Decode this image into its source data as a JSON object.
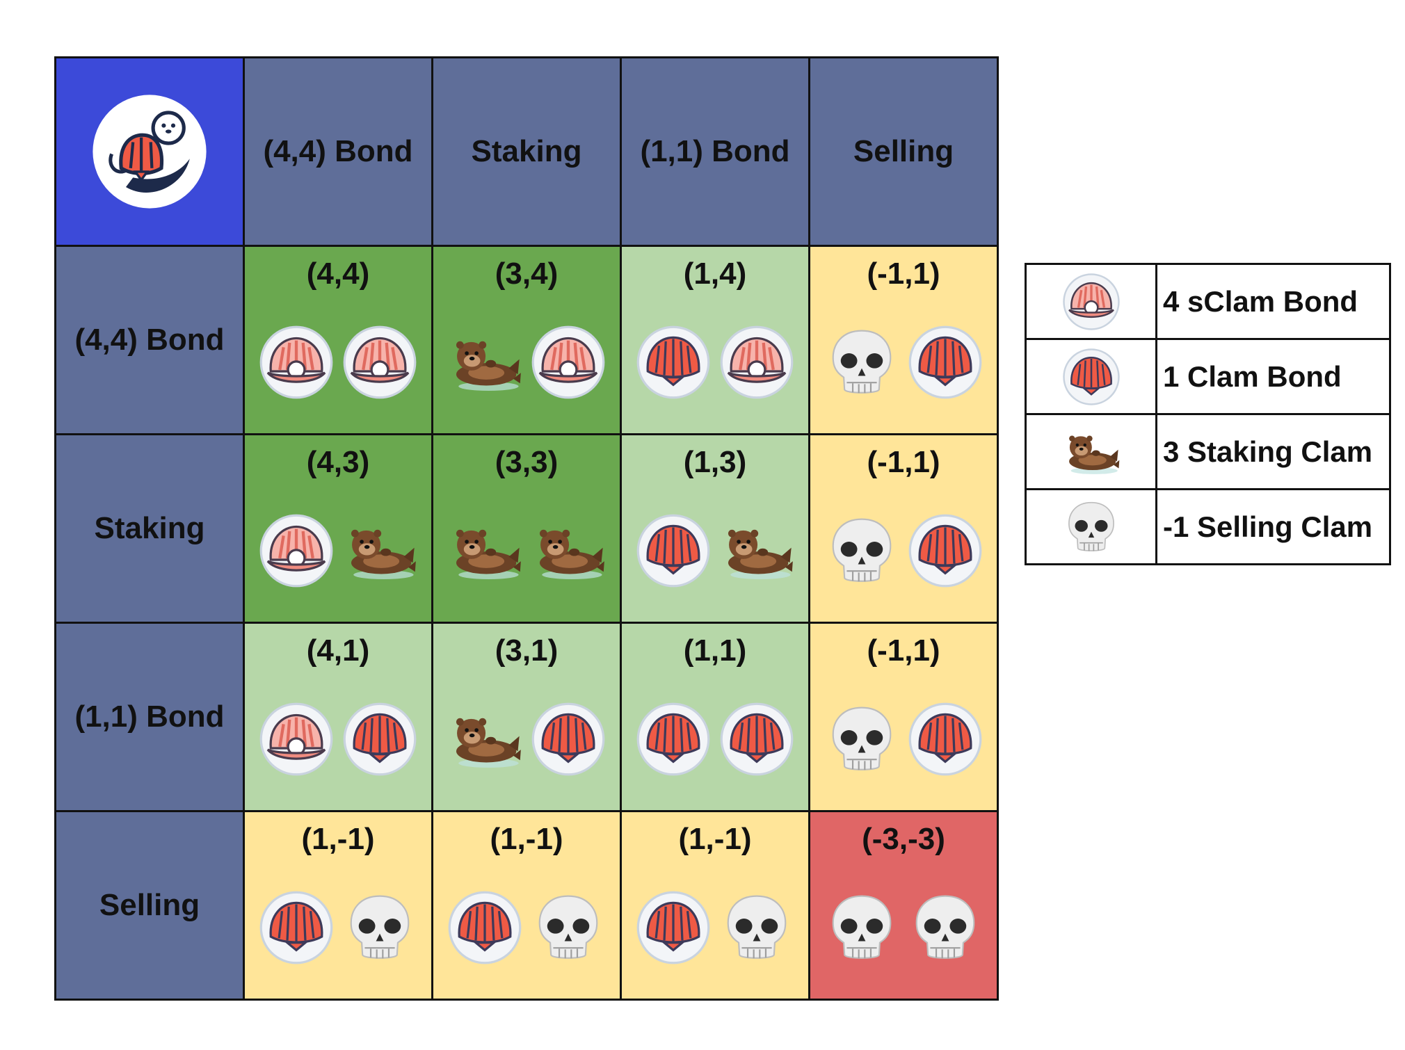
{
  "logo": {
    "icon": "otter-holding-clam-logo"
  },
  "column_headers": [
    "(4,4) Bond",
    "Staking",
    "(1,1) Bond",
    "Selling"
  ],
  "rows": [
    {
      "label": "(4,4) Bond",
      "cells": [
        {
          "payoff": "(4,4)",
          "color": "#6aa84f",
          "icons": [
            "sclam-bond-icon",
            "sclam-bond-icon"
          ]
        },
        {
          "payoff": "(3,4)",
          "color": "#6aa84f",
          "icons": [
            "otter-icon",
            "sclam-bond-icon"
          ]
        },
        {
          "payoff": "(1,4)",
          "color": "#b6d7a8",
          "icons": [
            "clam-bond-icon",
            "sclam-bond-icon"
          ]
        },
        {
          "payoff": "(-1,1)",
          "color": "#ffe599",
          "icons": [
            "skull-icon",
            "clam-bond-icon"
          ]
        }
      ]
    },
    {
      "label": "Staking",
      "cells": [
        {
          "payoff": "(4,3)",
          "color": "#6aa84f",
          "icons": [
            "sclam-bond-icon",
            "otter-icon"
          ]
        },
        {
          "payoff": "(3,3)",
          "color": "#6aa84f",
          "icons": [
            "otter-icon",
            "otter-icon"
          ]
        },
        {
          "payoff": "(1,3)",
          "color": "#b6d7a8",
          "icons": [
            "clam-bond-icon",
            "otter-icon"
          ]
        },
        {
          "payoff": "(-1,1)",
          "color": "#ffe599",
          "icons": [
            "skull-icon",
            "clam-bond-icon"
          ]
        }
      ]
    },
    {
      "label": "(1,1) Bond",
      "cells": [
        {
          "payoff": "(4,1)",
          "color": "#b6d7a8",
          "icons": [
            "sclam-bond-icon",
            "clam-bond-icon"
          ]
        },
        {
          "payoff": "(3,1)",
          "color": "#b6d7a8",
          "icons": [
            "otter-icon",
            "clam-bond-icon"
          ]
        },
        {
          "payoff": "(1,1)",
          "color": "#b6d7a8",
          "icons": [
            "clam-bond-icon",
            "clam-bond-icon"
          ]
        },
        {
          "payoff": "(-1,1)",
          "color": "#ffe599",
          "icons": [
            "skull-icon",
            "clam-bond-icon"
          ]
        }
      ]
    },
    {
      "label": "Selling",
      "cells": [
        {
          "payoff": "(1,-1)",
          "color": "#ffe599",
          "icons": [
            "clam-bond-icon",
            "skull-icon"
          ]
        },
        {
          "payoff": "(1,-1)",
          "color": "#ffe599",
          "icons": [
            "clam-bond-icon",
            "skull-icon"
          ]
        },
        {
          "payoff": "(1,-1)",
          "color": "#ffe599",
          "icons": [
            "clam-bond-icon",
            "skull-icon"
          ]
        },
        {
          "payoff": "(-3,-3)",
          "color": "#e06666",
          "icons": [
            "skull-icon",
            "skull-icon"
          ]
        }
      ]
    }
  ],
  "legend": [
    {
      "icon": "sclam-bond-icon",
      "label": "4 sClam Bond"
    },
    {
      "icon": "clam-bond-icon",
      "label": "1 Clam Bond"
    },
    {
      "icon": "otter-icon",
      "label": "3 Staking Clam"
    },
    {
      "icon": "skull-icon",
      "label": "-1 Selling Clam"
    }
  ]
}
